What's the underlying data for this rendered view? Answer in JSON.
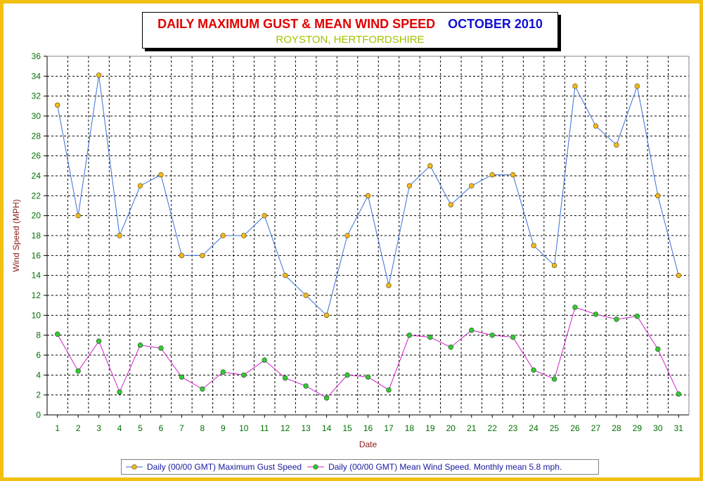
{
  "title": {
    "main": "DAILY MAXIMUM GUST & MEAN WIND SPEED",
    "month": "OCTOBER 2010",
    "subtitle": "ROYSTON, HERTFORDSHIRE"
  },
  "colors": {
    "frame": "#f2c010",
    "title_main": "#e00000",
    "title_month": "#1010d0",
    "subtitle": "#a8c000",
    "gust_line": "#3a6fd8",
    "gust_marker": "#f2b820",
    "mean_line": "#d020c8",
    "mean_marker": "#34c834",
    "axis_text": "#007000",
    "axis_label": "#8b1a1a",
    "legend_text": "#1818a0"
  },
  "chart_data": {
    "type": "line",
    "title": "DAILY MAXIMUM GUST & MEAN WIND SPEED",
    "xlabel": "Date",
    "ylabel": "Wind Speed (MPH)",
    "ylim": [
      0,
      36
    ],
    "yticks": [
      0,
      2,
      4,
      6,
      8,
      10,
      12,
      14,
      16,
      18,
      20,
      22,
      24,
      26,
      28,
      30,
      32,
      34,
      36
    ],
    "grid": true,
    "legend_position": "bottom",
    "categories": [
      "1",
      "2",
      "3",
      "4",
      "5",
      "6",
      "7",
      "8",
      "9",
      "10",
      "11",
      "12",
      "13",
      "14",
      "15",
      "16",
      "17",
      "18",
      "19",
      "20",
      "21",
      "22",
      "23",
      "24",
      "25",
      "26",
      "27",
      "28",
      "29",
      "30",
      "31"
    ],
    "series": [
      {
        "name": "Daily (00/00 GMT) Maximum Gust Speed",
        "values": [
          31.1,
          20.0,
          34.1,
          18.0,
          23.0,
          24.1,
          16.0,
          16.0,
          18.0,
          18.0,
          20.0,
          14.0,
          12.0,
          10.0,
          18.0,
          22.0,
          13.0,
          23.0,
          25.0,
          21.1,
          23.0,
          24.1,
          24.1,
          17.0,
          15.0,
          33.0,
          29.0,
          27.1,
          33.0,
          22.0,
          14.0
        ]
      },
      {
        "name": "Daily (00/00 GMT) Mean Wind Speed. Monthly mean 5.8 mph.",
        "values": [
          8.1,
          4.4,
          7.4,
          2.3,
          7.0,
          6.7,
          3.8,
          2.6,
          4.3,
          4.0,
          5.5,
          3.7,
          2.9,
          1.7,
          4.0,
          3.8,
          2.5,
          8.0,
          7.8,
          6.8,
          8.5,
          8.0,
          7.8,
          4.5,
          3.6,
          10.8,
          10.1,
          9.6,
          9.9,
          6.6,
          2.1
        ]
      }
    ]
  }
}
